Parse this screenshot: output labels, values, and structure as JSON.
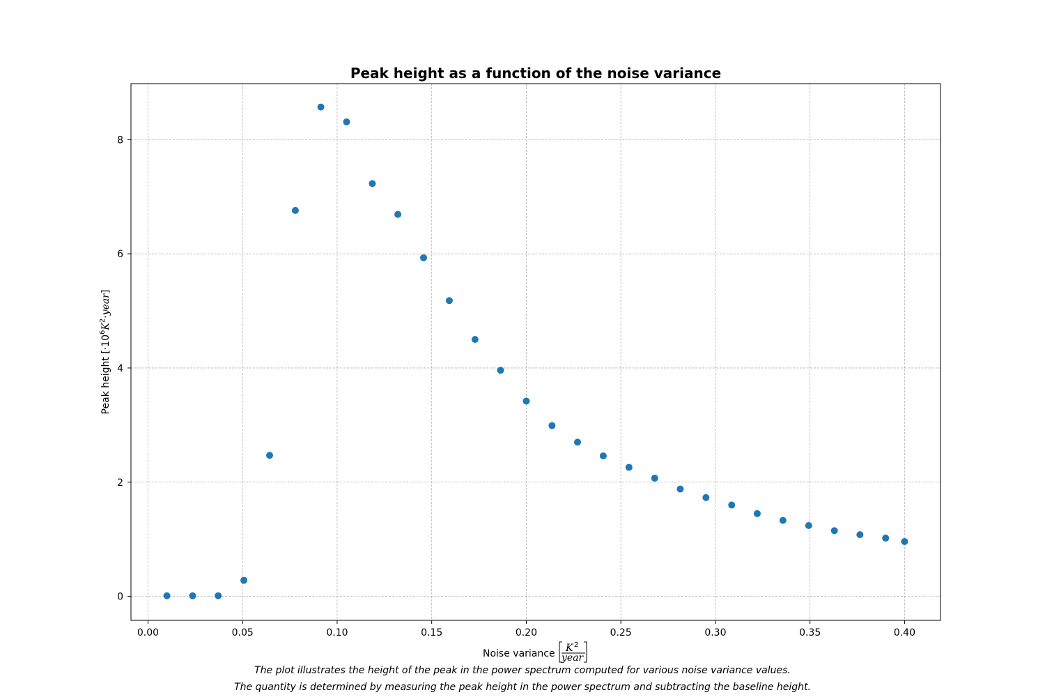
{
  "chart_data": {
    "type": "scatter",
    "title": "Peak height as a function of the noise variance",
    "xlabel": {
      "prefix": "Noise variance",
      "numerator": "K",
      "numerator_exponent": "2",
      "denominator": "year"
    },
    "ylabel": {
      "prefix": "Peak height [",
      "factor": "·10",
      "factor_exponent": "6",
      "unit": "K",
      "unit_exponent": "2",
      "unit_tail": "·year",
      "suffix": "]"
    },
    "xlim": [
      -0.009,
      0.419
    ],
    "ylim": [
      -0.42,
      8.98
    ],
    "xticks": [
      {
        "value": 0.0,
        "label": "0.00"
      },
      {
        "value": 0.05,
        "label": "0.05"
      },
      {
        "value": 0.1,
        "label": "0.10"
      },
      {
        "value": 0.15,
        "label": "0.15"
      },
      {
        "value": 0.2,
        "label": "0.20"
      },
      {
        "value": 0.25,
        "label": "0.25"
      },
      {
        "value": 0.3,
        "label": "0.30"
      },
      {
        "value": 0.35,
        "label": "0.35"
      },
      {
        "value": 0.4,
        "label": "0.40"
      }
    ],
    "yticks": [
      {
        "value": 0,
        "label": "0"
      },
      {
        "value": 2,
        "label": "2"
      },
      {
        "value": 4,
        "label": "4"
      },
      {
        "value": 6,
        "label": "6"
      },
      {
        "value": 8,
        "label": "8"
      }
    ],
    "grid": true,
    "marker_color": "#1f77b4",
    "x": [
      0.01,
      0.0236,
      0.0371,
      0.0507,
      0.0643,
      0.0779,
      0.0914,
      0.105,
      0.1186,
      0.1321,
      0.1457,
      0.1593,
      0.1729,
      0.1864,
      0.2,
      0.2136,
      0.2271,
      0.2407,
      0.2543,
      0.2679,
      0.2814,
      0.295,
      0.3086,
      0.3221,
      0.3357,
      0.3493,
      0.3629,
      0.3764,
      0.39,
      0.4
    ],
    "y": [
      0.01,
      0.01,
      0.01,
      0.28,
      2.47,
      6.76,
      8.57,
      8.31,
      7.23,
      6.69,
      5.93,
      5.18,
      4.5,
      3.96,
      3.42,
      2.99,
      2.7,
      2.46,
      2.26,
      2.07,
      1.88,
      1.73,
      1.6,
      1.45,
      1.33,
      1.24,
      1.15,
      1.08,
      1.02,
      0.96
    ]
  },
  "captions": [
    "The plot illustrates the height of the peak in the power spectrum computed for various noise variance values.",
    "The quantity is determined by measuring the peak height in the power spectrum and subtracting the baseline height."
  ]
}
